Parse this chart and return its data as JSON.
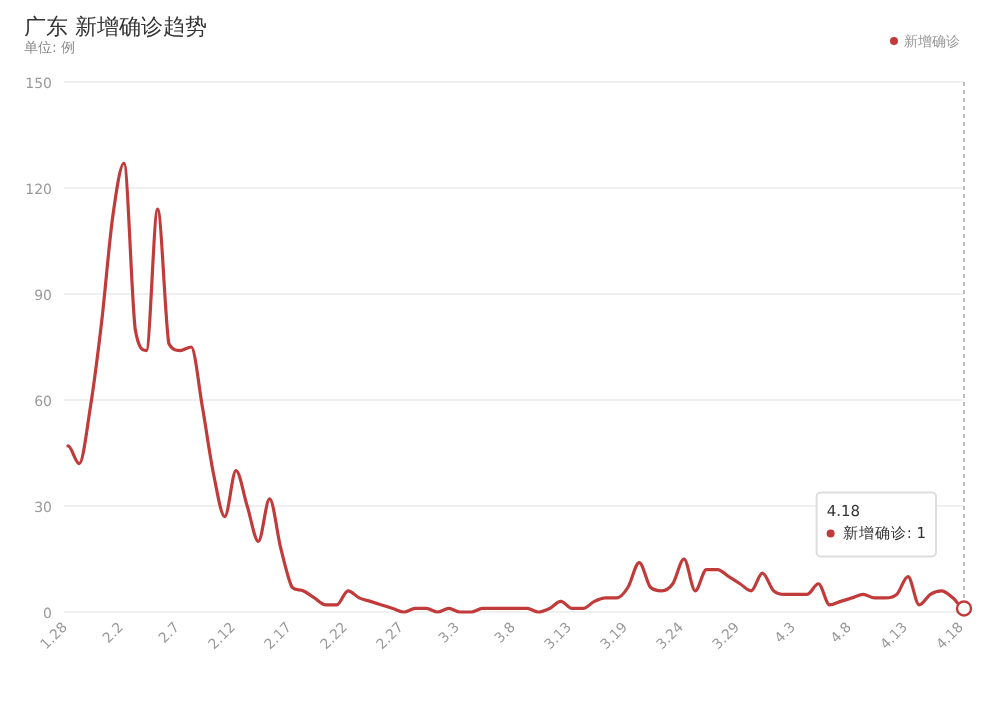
{
  "chart_data": {
    "type": "line",
    "title": "广东 新增确诊趋势",
    "ylabel": "单位: 例",
    "categories": [
      "1.28",
      null,
      null,
      null,
      null,
      "2.2",
      null,
      null,
      null,
      null,
      "2.7",
      null,
      null,
      null,
      null,
      "2.12",
      null,
      null,
      null,
      null,
      "2.17",
      null,
      null,
      null,
      null,
      "2.22",
      null,
      null,
      null,
      null,
      "2.27",
      null,
      null,
      null,
      null,
      "3.3",
      null,
      null,
      null,
      null,
      "3.8",
      null,
      null,
      null,
      null,
      "3.13",
      null,
      null,
      null,
      null,
      "3.19",
      null,
      null,
      null,
      null,
      "3.24",
      null,
      null,
      null,
      null,
      "3.29",
      null,
      null,
      null,
      null,
      "4.3",
      null,
      null,
      null,
      null,
      "4.8",
      null,
      null,
      null,
      null,
      "4.13",
      null,
      null,
      null,
      null,
      "4.18"
    ],
    "series": [
      {
        "name": "新增确诊",
        "color": "#c23b3b",
        "values": [
          47,
          42,
          58,
          82,
          112,
          127,
          80,
          74,
          114,
          76,
          74,
          75,
          58,
          39,
          27,
          40,
          30,
          20,
          32,
          18,
          7,
          6,
          4,
          2,
          2,
          6,
          4,
          3,
          2,
          1,
          0,
          1,
          1,
          0,
          1,
          0,
          0,
          1,
          1,
          1,
          1,
          1,
          0,
          1,
          3,
          1,
          1,
          3,
          4,
          4,
          7,
          14,
          7,
          6,
          8,
          15,
          6,
          12,
          12,
          10,
          8,
          6,
          11,
          6,
          5,
          5,
          5,
          8,
          2,
          3,
          4,
          5,
          4,
          4,
          5,
          10,
          2,
          5,
          6,
          4,
          1
        ]
      }
    ],
    "ylim": [
      0,
      150
    ],
    "yticks": [
      0,
      30,
      60,
      90,
      120,
      150
    ],
    "grid": "y",
    "legend": "top right",
    "marker": "none",
    "line_style": "solid",
    "ref_lines": [
      {
        "axis": "x",
        "value": "4.18",
        "line_style": "dotted",
        "color": "#bbbbbb"
      }
    ],
    "annotations": [
      "4.18\n新增确诊: 1"
    ]
  }
}
